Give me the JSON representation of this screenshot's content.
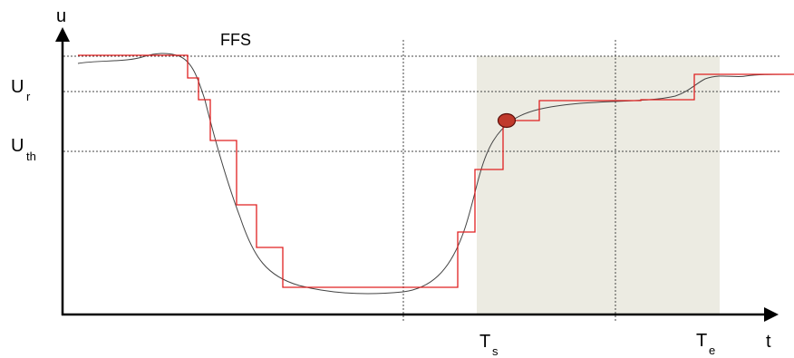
{
  "labels": {
    "y_axis": "u",
    "x_axis": "t",
    "ffs": "FFS",
    "u_r_main": "U",
    "u_r_sub": "r",
    "u_th_main": "U",
    "u_th_sub": "th",
    "t_s_main": "T",
    "t_s_sub": "s",
    "t_e_main": "T",
    "t_e_sub": "e"
  },
  "colors": {
    "axis": "#000000",
    "guide": "#444444",
    "shade": "#ecebe2",
    "smooth_curve": "#444444",
    "step_curve": "#e02020",
    "marker_fill": "#c0392b",
    "marker_stroke": "#5a0f0a"
  }
}
